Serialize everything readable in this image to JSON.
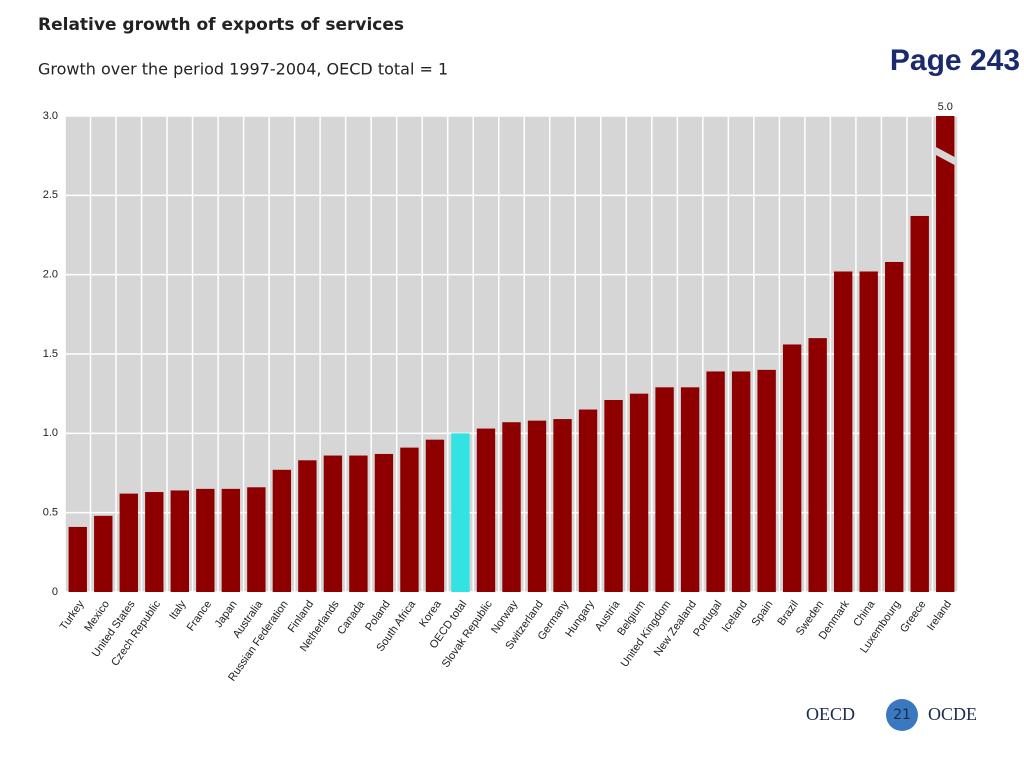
{
  "chart_data": {
    "type": "bar",
    "title": "Relative growth of exports of services",
    "subtitle": "Growth over the period 1997-2004, OECD total = 1",
    "categories": [
      "Turkey",
      "Mexico",
      "United States",
      "Czech Republic",
      "Italy",
      "France",
      "Japan",
      "Australia",
      "Russian Federation",
      "Finland",
      "Netherlands",
      "Canada",
      "Poland",
      "South Africa",
      "Korea",
      "OECD total",
      "Slovak Republic",
      "Norway",
      "Switzerland",
      "Germany",
      "Hungary",
      "Austria",
      "Belgium",
      "United Kingdom",
      "New Zealand",
      "Portugal",
      "Iceland",
      "Spain",
      "Brazil",
      "Sweden",
      "Denmark",
      "China",
      "Luxembourg",
      "Greece",
      "Ireland"
    ],
    "values": [
      0.41,
      0.48,
      0.62,
      0.63,
      0.64,
      0.65,
      0.65,
      0.66,
      0.77,
      0.83,
      0.86,
      0.86,
      0.87,
      0.91,
      0.96,
      1.0,
      1.03,
      1.07,
      1.08,
      1.09,
      1.15,
      1.21,
      1.25,
      1.29,
      1.29,
      1.39,
      1.39,
      1.4,
      1.56,
      1.6,
      2.02,
      2.02,
      2.08,
      2.37,
      5.0
    ],
    "value_labels": [
      null,
      null,
      null,
      null,
      null,
      null,
      null,
      null,
      null,
      null,
      null,
      null,
      null,
      null,
      null,
      null,
      null,
      null,
      null,
      null,
      null,
      null,
      null,
      null,
      null,
      null,
      null,
      null,
      null,
      null,
      null,
      null,
      null,
      null,
      "5.0"
    ],
    "colors": [
      "#8e0000",
      "#8e0000",
      "#8e0000",
      "#8e0000",
      "#8e0000",
      "#8e0000",
      "#8e0000",
      "#8e0000",
      "#8e0000",
      "#8e0000",
      "#8e0000",
      "#8e0000",
      "#8e0000",
      "#8e0000",
      "#8e0000",
      "#33e3e3",
      "#8e0000",
      "#8e0000",
      "#8e0000",
      "#8e0000",
      "#8e0000",
      "#8e0000",
      "#8e0000",
      "#8e0000",
      "#8e0000",
      "#8e0000",
      "#8e0000",
      "#8e0000",
      "#8e0000",
      "#8e0000",
      "#8e0000",
      "#8e0000",
      "#8e0000",
      "#8e0000",
      "#8e0000"
    ],
    "ylim": [
      0,
      3
    ],
    "yticks": [
      0,
      0.5,
      {
        "value": 1,
        "label": "1.0"
      },
      1.5,
      {
        "value": 2,
        "label": "2.0"
      },
      2.5,
      {
        "value": 3,
        "label": "3.0"
      }
    ],
    "grid": true
  },
  "page_label": "Page 243",
  "footer": {
    "left": "OECD",
    "number": "21",
    "right": "OCDE"
  }
}
